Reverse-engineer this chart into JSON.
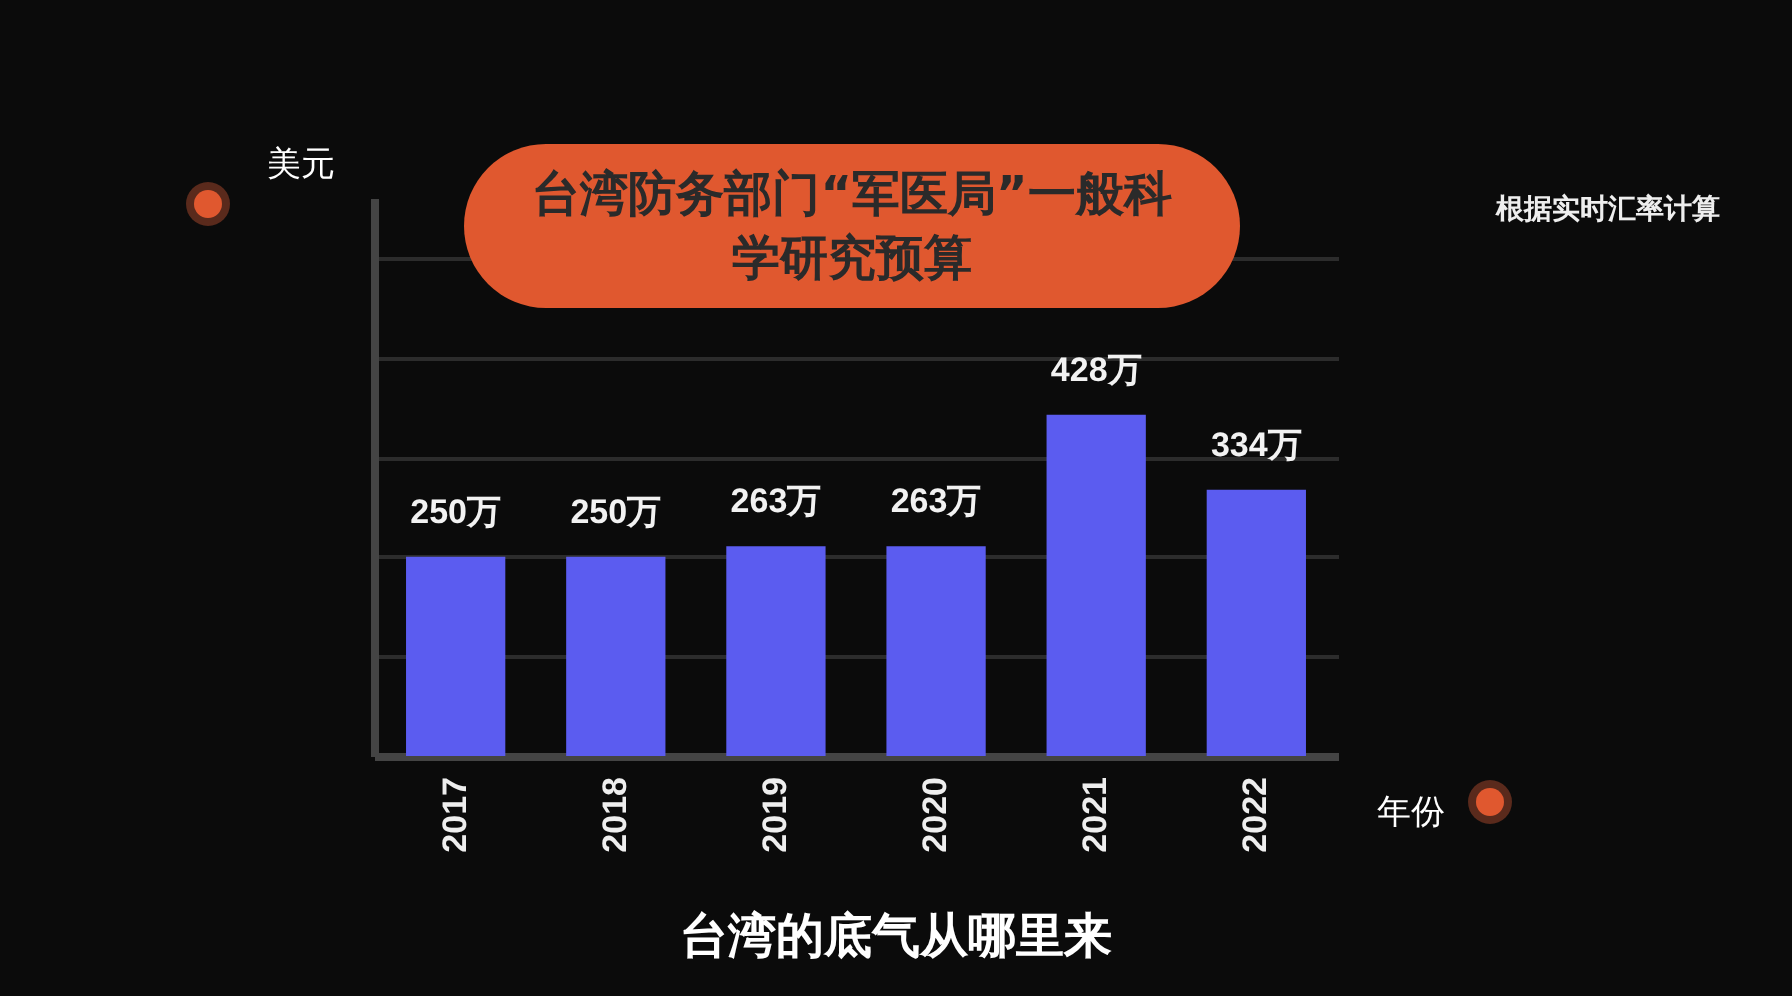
{
  "chart_data": {
    "type": "bar",
    "title": "台湾防务部门“军医局”一般科学研究预算",
    "ylabel": "美元",
    "xlabel": "年份",
    "annotations": [
      "根据实时汇率计算",
      "台湾的底气从哪里来"
    ],
    "categories": [
      "2017",
      "2018",
      "2019",
      "2020",
      "2021",
      "2022"
    ],
    "values": [
      250,
      250,
      263,
      263,
      428,
      334
    ],
    "value_labels": [
      "250万",
      "250万",
      "263万",
      "263万",
      "428万",
      "334万"
    ],
    "color": "#5b5cf0",
    "ylim": [
      0,
      700
    ],
    "yticks": [
      {
        "value": 0,
        "label": null
      },
      {
        "value": 125,
        "label": null
      },
      {
        "value": 250,
        "label": null
      },
      {
        "value": 375,
        "label": null
      },
      {
        "value": 500,
        "label": null
      },
      {
        "value": 625,
        "label": null
      }
    ],
    "grid": "y"
  }
}
